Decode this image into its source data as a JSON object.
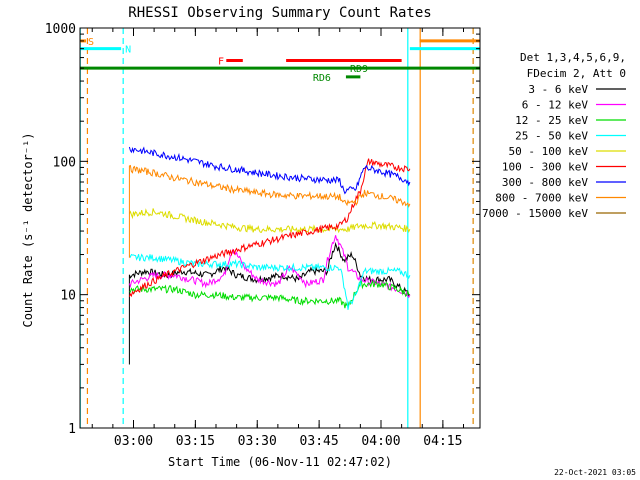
{
  "chart_data": {
    "type": "line",
    "title": "RHESSI Observing Summary Count Rates",
    "xlabel": "Start Time (06-Nov-11 02:47:02)",
    "ylabel": "Count Rate (s⁻¹ detector⁻¹)",
    "ylim": [
      1,
      1000
    ],
    "y_scale": "log",
    "y_ticks": [
      {
        "value": 1,
        "label": "1"
      },
      {
        "value": 10,
        "label": "10"
      },
      {
        "value": 100,
        "label": "100"
      },
      {
        "value": 1000,
        "label": "1000"
      }
    ],
    "x_range_min": [
      7.03,
      30.95
    ],
    "x_range_minutes_comment": "",
    "xlim": [
      "02:47:02",
      "04:24:00"
    ],
    "x_ticks": [
      {
        "t": "03:00",
        "label": "03:00"
      },
      {
        "t": "03:15",
        "label": "03:15"
      },
      {
        "t": "03:30",
        "label": "03:30"
      },
      {
        "t": "03:45",
        "label": "03:45"
      },
      {
        "t": "04:00",
        "label": "04:00"
      },
      {
        "t": "04:15",
        "label": "04:15"
      }
    ],
    "legend_header": [
      "Det 1,3,4,5,6,9,",
      "FDecim 2, Att 0"
    ],
    "legend_placement": "right",
    "timestamp": "22-Oct-2021 03:05",
    "series": [
      {
        "name": "3 - 6 keV",
        "color": "#000000",
        "points": [
          [
            "02:59:00",
            3
          ],
          [
            "02:59:00",
            14
          ],
          [
            "03:03:00",
            15
          ],
          [
            "03:08:00",
            14
          ],
          [
            "03:12:00",
            15
          ],
          [
            "03:18:00",
            14
          ],
          [
            "03:22:00",
            16
          ],
          [
            "03:25:00",
            14
          ],
          [
            "03:30:00",
            13
          ],
          [
            "03:36:00",
            14
          ],
          [
            "03:40:00",
            13
          ],
          [
            "03:43:00",
            15
          ],
          [
            "03:47:00",
            15
          ],
          [
            "03:49:00",
            24
          ],
          [
            "03:51:00",
            18
          ],
          [
            "03:53:00",
            20
          ],
          [
            "03:55:00",
            14
          ],
          [
            "03:57:00",
            13
          ],
          [
            "04:00:00",
            13
          ],
          [
            "04:02:00",
            13
          ],
          [
            "04:05:00",
            11
          ],
          [
            "04:07:00",
            10
          ]
        ]
      },
      {
        "name": "6 - 12 keV",
        "color": "#ff00ff",
        "points": [
          [
            "02:59:00",
            12
          ],
          [
            "03:05:00",
            14
          ],
          [
            "03:10:00",
            14
          ],
          [
            "03:14:00",
            13
          ],
          [
            "03:18:00",
            12
          ],
          [
            "03:22:00",
            14
          ],
          [
            "03:24:00",
            22
          ],
          [
            "03:27:00",
            16
          ],
          [
            "03:30:00",
            13
          ],
          [
            "03:35:00",
            12
          ],
          [
            "03:38:00",
            16
          ],
          [
            "03:42:00",
            12
          ],
          [
            "03:46:00",
            13
          ],
          [
            "03:49:00",
            28
          ],
          [
            "03:52:00",
            16
          ],
          [
            "03:55:00",
            13
          ],
          [
            "04:00:00",
            12
          ],
          [
            "04:04:00",
            11
          ],
          [
            "04:07:00",
            10
          ]
        ]
      },
      {
        "name": "12 - 25 keV",
        "color": "#00dd00",
        "points": [
          [
            "02:59:00",
            11
          ],
          [
            "03:05:00",
            11
          ],
          [
            "03:10:00",
            11
          ],
          [
            "03:15:00",
            10
          ],
          [
            "03:20:00",
            10
          ],
          [
            "03:25:00",
            9.5
          ],
          [
            "03:30:00",
            9.5
          ],
          [
            "03:35:00",
            9.5
          ],
          [
            "03:40:00",
            9
          ],
          [
            "03:45:00",
            9
          ],
          [
            "03:50:00",
            9
          ],
          [
            "03:52:00",
            8
          ],
          [
            "03:55:00",
            12
          ],
          [
            "04:00:00",
            12
          ],
          [
            "04:04:00",
            11
          ],
          [
            "04:07:00",
            10
          ]
        ]
      },
      {
        "name": "25 - 50 keV",
        "color": "#00ffff",
        "points": [
          [
            "02:59:00",
            19
          ],
          [
            "03:05:00",
            19
          ],
          [
            "03:10:00",
            18
          ],
          [
            "03:15:00",
            17
          ],
          [
            "03:20:00",
            17
          ],
          [
            "03:25:00",
            17
          ],
          [
            "03:30:00",
            16
          ],
          [
            "03:35:00",
            16
          ],
          [
            "03:40:00",
            16
          ],
          [
            "03:45:00",
            16
          ],
          [
            "03:50:00",
            16
          ],
          [
            "03:52:00",
            8
          ],
          [
            "03:54:00",
            10
          ],
          [
            "03:56:00",
            15
          ],
          [
            "04:00:00",
            15
          ],
          [
            "04:04:00",
            15
          ],
          [
            "04:07:00",
            14
          ]
        ]
      },
      {
        "name": "50 - 100 keV",
        "color": "#dddd00",
        "points": [
          [
            "02:59:00",
            40
          ],
          [
            "03:05:00",
            42
          ],
          [
            "03:10:00",
            39
          ],
          [
            "03:15:00",
            36
          ],
          [
            "03:20:00",
            34
          ],
          [
            "03:25:00",
            32
          ],
          [
            "03:30:00",
            31
          ],
          [
            "03:35:00",
            31
          ],
          [
            "03:40:00",
            31
          ],
          [
            "03:45:00",
            31
          ],
          [
            "03:50:00",
            31
          ],
          [
            "03:52:00",
            31
          ],
          [
            "03:55:00",
            33
          ],
          [
            "04:00:00",
            33
          ],
          [
            "04:04:00",
            32
          ],
          [
            "04:07:00",
            31
          ]
        ]
      },
      {
        "name": "100 - 300 keV",
        "color": "#ff0000",
        "points": [
          [
            "02:59:00",
            10
          ],
          [
            "03:50:00",
            33
          ],
          [
            "03:52:00",
            38
          ],
          [
            "03:55:00",
            60
          ],
          [
            "03:57:00",
            100
          ],
          [
            "04:00:00",
            95
          ],
          [
            "04:04:00",
            90
          ],
          [
            "04:07:00",
            88
          ]
        ]
      },
      {
        "name": "300 - 800 keV",
        "color": "#0000ff",
        "points": [
          [
            "02:59:00",
            125
          ],
          [
            "03:05:00",
            115
          ],
          [
            "03:10:00",
            108
          ],
          [
            "03:15:00",
            100
          ],
          [
            "03:20:00",
            92
          ],
          [
            "03:25:00",
            87
          ],
          [
            "03:30:00",
            82
          ],
          [
            "03:35:00",
            78
          ],
          [
            "03:40:00",
            75
          ],
          [
            "03:45:00",
            73
          ],
          [
            "03:50:00",
            72
          ],
          [
            "03:51:00",
            60
          ],
          [
            "03:54:00",
            62
          ],
          [
            "03:56:00",
            90
          ],
          [
            "04:00:00",
            84
          ],
          [
            "04:04:00",
            77
          ],
          [
            "04:07:00",
            70
          ]
        ]
      },
      {
        "name": "800 - 7000 keV",
        "color": "#ff8800",
        "points": [
          [
            "02:59:00",
            20
          ],
          [
            "02:59:00",
            88
          ],
          [
            "03:05:00",
            82
          ],
          [
            "03:10:00",
            75
          ],
          [
            "03:15:00",
            70
          ],
          [
            "03:20:00",
            65
          ],
          [
            "03:25:00",
            61
          ],
          [
            "03:30:00",
            58
          ],
          [
            "03:35:00",
            56
          ],
          [
            "03:40:00",
            55
          ],
          [
            "03:45:00",
            55
          ],
          [
            "03:50:00",
            54
          ],
          [
            "03:51:00",
            48
          ],
          [
            "03:54:00",
            50
          ],
          [
            "03:56:00",
            58
          ],
          [
            "04:00:00",
            55
          ],
          [
            "04:04:00",
            51
          ],
          [
            "04:07:00",
            48
          ]
        ]
      },
      {
        "name": "7000 - 15000 keV",
        "color": "#996600",
        "points": []
      }
    ],
    "flags": [
      {
        "label": "S",
        "color": "#ff8800",
        "y": 800,
        "start": "02:47:02",
        "end": "02:48:30",
        "label_at": "02:48:30"
      },
      {
        "label": "S",
        "color": "#ff8800",
        "y": 800,
        "start": "04:09:20",
        "end": "04:24:00",
        "label_at": null
      },
      {
        "label": "N",
        "color": "#00ffff",
        "y": 700,
        "start": "02:47:02",
        "end": "02:57:00",
        "label_at": "02:57:30"
      },
      {
        "label": "N",
        "color": "#00ffff",
        "y": 700,
        "start": "04:07:00",
        "end": "04:24:00",
        "label_at": null
      },
      {
        "label": "F",
        "color": "#ff0000",
        "y": 570,
        "start": "03:22:30",
        "end": "03:26:30",
        "label_at": "03:20:00"
      },
      {
        "label": "",
        "color": "#ff0000",
        "y": 570,
        "start": "03:37:00",
        "end": "04:05:00",
        "label_at": null
      },
      {
        "label": "RD9",
        "color": "#008800",
        "y": 500,
        "start": "02:47:02",
        "end": "04:24:00",
        "label_at": "03:52:00"
      },
      {
        "label": "RD6",
        "color": "#008800",
        "y": 430,
        "start": "03:51:30",
        "end": "03:55:00",
        "label_at": "03:43:00"
      }
    ],
    "vertical_markers": [
      {
        "t": "02:48:50",
        "color": "#ff8800",
        "style": "dashed"
      },
      {
        "t": "02:57:30",
        "color": "#00ffff",
        "style": "dashed"
      },
      {
        "t": "04:06:30",
        "color": "#00ffff",
        "style": "solid"
      },
      {
        "t": "04:09:30",
        "color": "#ff8800",
        "style": "solid"
      },
      {
        "t": "04:22:20",
        "color": "#00ffff",
        "style": "dashed"
      },
      {
        "t": "04:22:20",
        "color": "#ff8800",
        "style": "dashed"
      },
      {
        "t": "02:47:05",
        "color": "#00ffff",
        "style": "solid"
      }
    ]
  }
}
